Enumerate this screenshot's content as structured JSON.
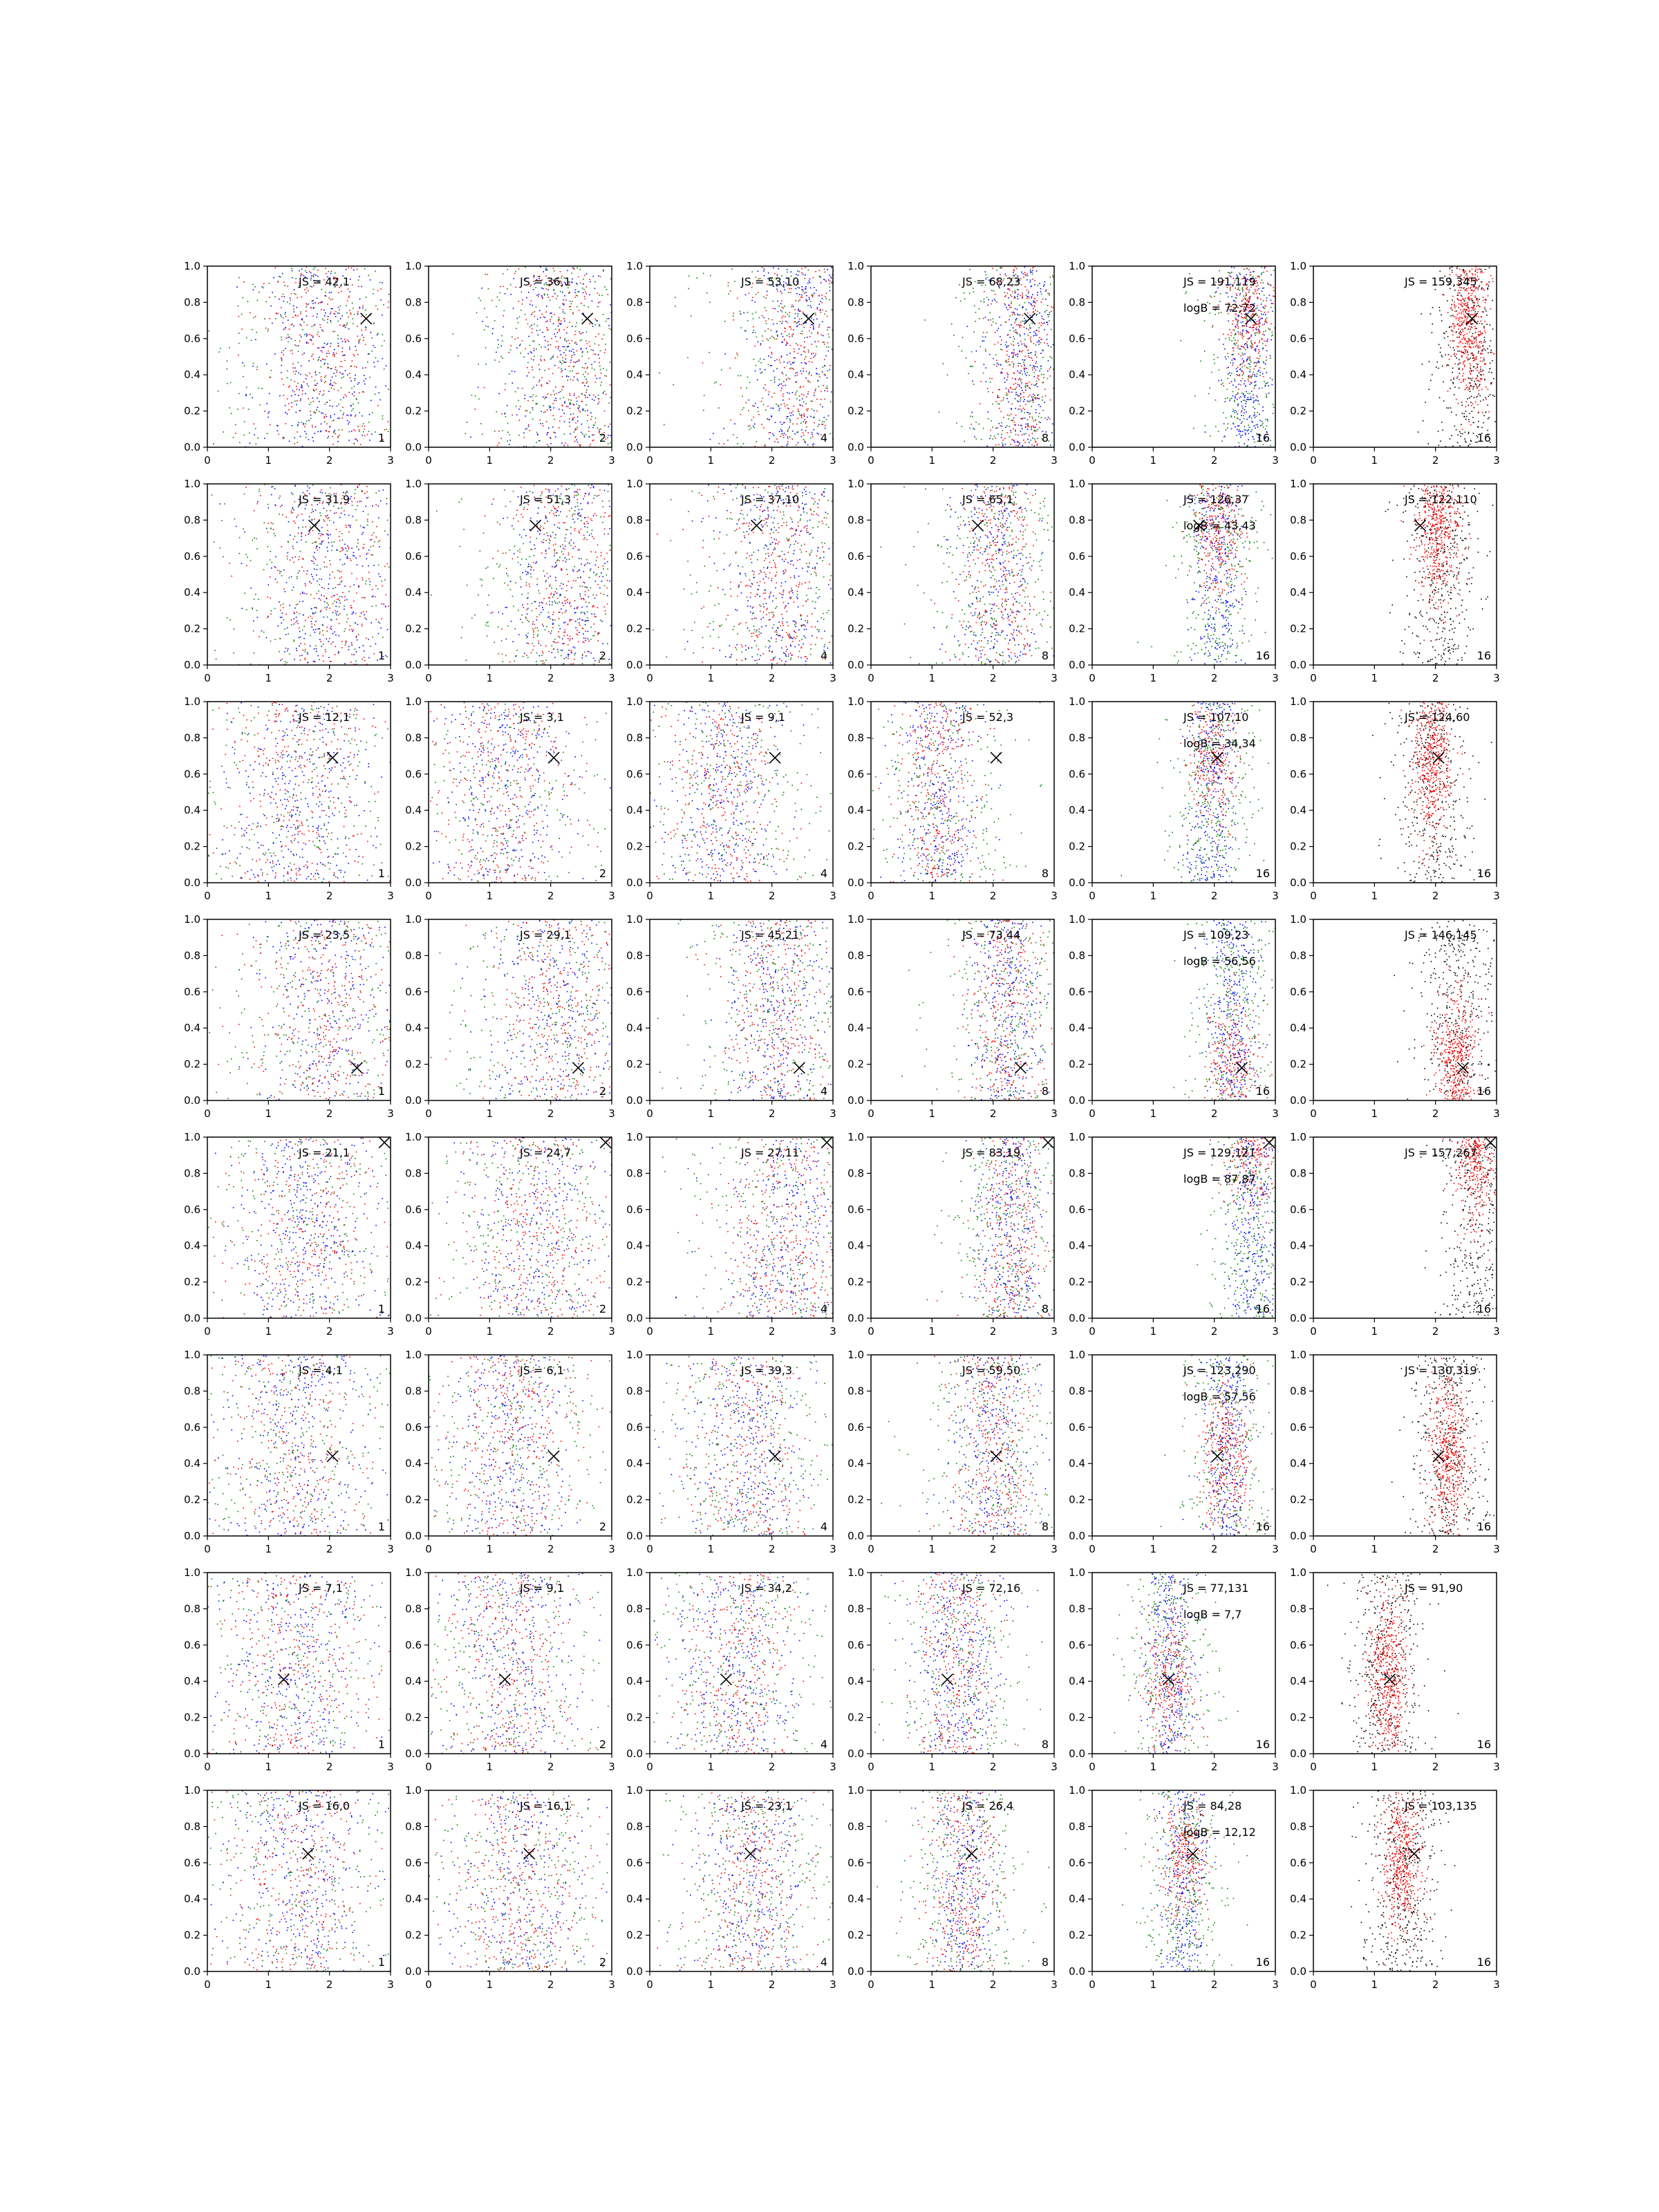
{
  "chart_data": {
    "type": "scatter",
    "layout": "grid-8x6",
    "xlim": [
      0,
      3
    ],
    "ylim": [
      0,
      1
    ],
    "x_ticks": [
      "0",
      "1",
      "2",
      "3"
    ],
    "y_ticks": [
      "0.0",
      "0.2",
      "0.4",
      "0.6",
      "0.8",
      "1.0"
    ],
    "grid": false,
    "colors": {
      "red": "#ff0000",
      "blue": "#0000ff",
      "green": "#008000",
      "black": "#000000",
      "axes": "#000000"
    },
    "marker": "x",
    "column_modes": [
      "mixed",
      "mixed",
      "mixed",
      "mixed",
      "mixed",
      "mixed-black"
    ],
    "column_labels": [
      "1",
      "2",
      "4",
      "8",
      "16",
      "16"
    ],
    "rows": [
      {
        "marker_x": 2.6,
        "marker_y": 0.71,
        "js": [
          "JS = 42,1",
          "JS = 36,1",
          "JS = 53,10",
          "JS = 68,23",
          "JS = 191,119",
          "JS = 159,345"
        ],
        "logB": "logB = 72,72",
        "centers": [
          2.6,
          0.65
        ],
        "panels": [
          {
            "mu": 1.9,
            "sx": 0.55,
            "rows": [
              "random"
            ]
          },
          {
            "mu": 2.2,
            "sx": 0.5
          },
          {
            "mu": 2.4,
            "sx": 0.45
          },
          {
            "mu": 2.45,
            "sx": 0.3
          },
          {
            "mu": 2.55,
            "sx": 0.2
          },
          {
            "mu": 2.55,
            "sx": 0.18
          }
        ]
      },
      {
        "marker_x": 1.75,
        "marker_y": 0.77,
        "js": [
          "JS = 31,9",
          "JS = 51,3",
          "JS = 37,10",
          "JS = 65,1",
          "JS = 126,37",
          "JS = 122,110"
        ],
        "logB": "logB = 43,43",
        "panels": [
          {
            "mu": 2.0,
            "sx": 0.6
          },
          {
            "mu": 2.25,
            "sx": 0.5
          },
          {
            "mu": 2.1,
            "sx": 0.5
          },
          {
            "mu": 2.05,
            "sx": 0.35
          },
          {
            "mu": 2.05,
            "sx": 0.2
          },
          {
            "mu": 2.05,
            "sx": 0.18
          }
        ]
      },
      {
        "marker_x": 2.05,
        "marker_y": 0.69,
        "js": [
          "JS = 12,1",
          "JS = 3,1",
          "JS = 9,1",
          "JS = 52,3",
          "JS = 107,10",
          "JS = 124,60"
        ],
        "logB": "logB = 34,34",
        "panels": [
          {
            "mu": 1.5,
            "sx": 0.6
          },
          {
            "mu": 1.2,
            "sx": 0.55
          },
          {
            "mu": 1.2,
            "sx": 0.5
          },
          {
            "mu": 1.1,
            "sx": 0.35
          },
          {
            "mu": 1.95,
            "sx": 0.2
          },
          {
            "mu": 1.95,
            "sx": 0.18
          }
        ]
      },
      {
        "marker_x": 2.45,
        "marker_y": 0.18,
        "js": [
          "JS = 23,5",
          "JS = 29,1",
          "JS = 45,21",
          "JS = 73,44",
          "JS = 109,23",
          "JS = 146,145"
        ],
        "logB": "logB = 56,56",
        "panels": [
          {
            "mu": 2.0,
            "sx": 0.6
          },
          {
            "mu": 2.1,
            "sx": 0.55
          },
          {
            "mu": 2.1,
            "sx": 0.45
          },
          {
            "mu": 2.2,
            "sx": 0.3
          },
          {
            "mu": 2.3,
            "sx": 0.2
          },
          {
            "mu": 2.35,
            "sx": 0.18
          }
        ]
      },
      {
        "marker_x": 2.9,
        "marker_y": 0.97,
        "js": [
          "JS = 21,1",
          "JS = 24,7",
          "JS = 27,11",
          "JS = 83,19",
          "JS = 129,121",
          "JS = 157,267"
        ],
        "logB": "logB = 87,87",
        "panels": [
          {
            "mu": 1.6,
            "sx": 0.6
          },
          {
            "mu": 1.7,
            "sx": 0.55
          },
          {
            "mu": 2.2,
            "sx": 0.5
          },
          {
            "mu": 2.3,
            "sx": 0.3
          },
          {
            "mu": 2.6,
            "sx": 0.2
          },
          {
            "mu": 2.65,
            "sx": 0.18
          }
        ]
      },
      {
        "marker_x": 2.05,
        "marker_y": 0.44,
        "js": [
          "JS = 4,1",
          "JS = 6,1",
          "JS = 39,3",
          "JS = 59,50",
          "JS = 123,290",
          "JS = 130,319"
        ],
        "logB": "logB = 57,56",
        "panels": [
          {
            "mu": 1.4,
            "sx": 0.6
          },
          {
            "mu": 1.3,
            "sx": 0.55
          },
          {
            "mu": 1.6,
            "sx": 0.5
          },
          {
            "mu": 2.0,
            "sx": 0.35
          },
          {
            "mu": 2.2,
            "sx": 0.2
          },
          {
            "mu": 2.2,
            "sx": 0.18
          }
        ]
      },
      {
        "marker_x": 1.25,
        "marker_y": 0.41,
        "js": [
          "JS = 7,1",
          "JS = 9,1",
          "JS = 34,2",
          "JS = 72,16",
          "JS = 77,131",
          "JS = 91,90"
        ],
        "logB": "logB = 7,7",
        "panels": [
          {
            "mu": 1.4,
            "sx": 0.6
          },
          {
            "mu": 1.35,
            "sx": 0.55
          },
          {
            "mu": 1.4,
            "sx": 0.5
          },
          {
            "mu": 1.4,
            "sx": 0.35
          },
          {
            "mu": 1.25,
            "sx": 0.2
          },
          {
            "mu": 1.2,
            "sx": 0.18
          }
        ]
      },
      {
        "marker_x": 1.65,
        "marker_y": 0.65,
        "js": [
          "JS = 16,0",
          "JS = 16,1",
          "JS = 23,1",
          "JS = 26,4",
          "JS = 84,28",
          "JS = 103,135"
        ],
        "logB": "logB = 12,12",
        "panels": [
          {
            "mu": 1.5,
            "sx": 0.6
          },
          {
            "mu": 1.5,
            "sx": 0.55
          },
          {
            "mu": 1.6,
            "sx": 0.45
          },
          {
            "mu": 1.5,
            "sx": 0.3
          },
          {
            "mu": 1.5,
            "sx": 0.2
          },
          {
            "mu": 1.45,
            "sx": 0.18
          }
        ]
      }
    ]
  }
}
